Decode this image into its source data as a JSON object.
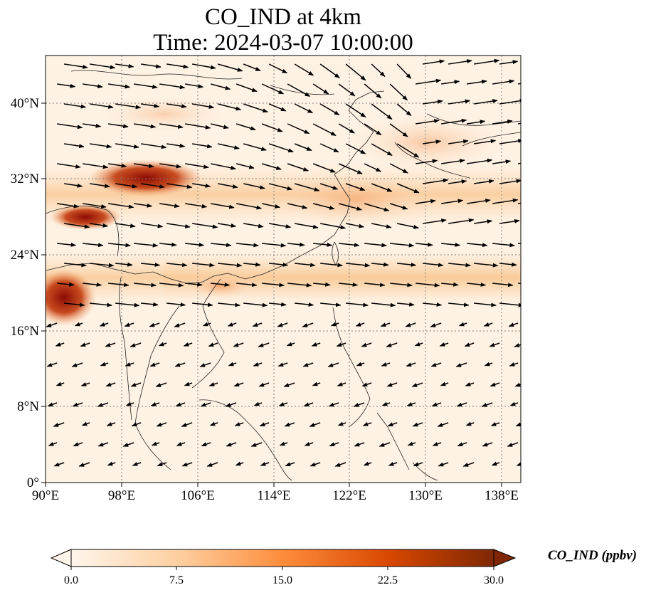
{
  "title": "CO_IND at 4km",
  "subtitle": "Time: 2024-03-07 10:00:00",
  "map": {
    "lon_range": [
      90,
      140
    ],
    "lat_range": [
      0,
      45
    ],
    "x_ticks": [
      "90°E",
      "98°E",
      "106°E",
      "114°E",
      "122°E",
      "130°E",
      "138°E"
    ],
    "y_ticks": [
      "0°",
      "8°N",
      "16°N",
      "24°N",
      "32°N",
      "40°N"
    ],
    "gridlines": "dotted",
    "field": "CO_IND concentration, shaded, with wind vectors overlaid"
  },
  "colorbar": {
    "label": "CO_IND (ppbv)",
    "ticks": [
      "0.0",
      "7.5",
      "15.0",
      "22.5",
      "30.0"
    ],
    "min": 0,
    "max": 30,
    "colors": [
      "#fff5eb",
      "#fdd0a2",
      "#fd8d3c",
      "#d94801",
      "#7f2704"
    ]
  },
  "colors": {
    "axis": "#000000",
    "grid": "#7f7f7f",
    "coast": "#222222",
    "vectors": "#000000"
  }
}
